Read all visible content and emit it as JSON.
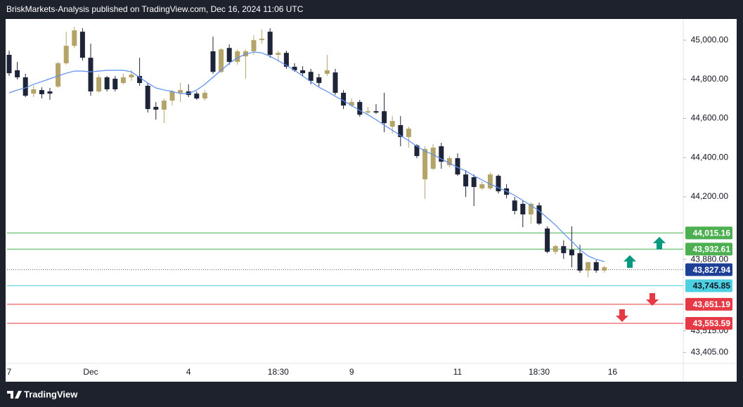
{
  "header": {
    "text": "BriskMarkets-Analysis published on TradingView.com, Dec 16, 2024 11:06 UTC"
  },
  "footer": {
    "brand": "TradingView"
  },
  "chart_data": {
    "type": "candlestick",
    "categories": [
      "7",
      null,
      null,
      null,
      null,
      null,
      null,
      null,
      null,
      null,
      "Dec",
      null,
      null,
      null,
      null,
      null,
      null,
      null,
      null,
      null,
      null,
      null,
      "4",
      null,
      null,
      null,
      null,
      null,
      null,
      null,
      null,
      null,
      null,
      "18:30",
      null,
      null,
      null,
      null,
      null,
      null,
      null,
      null,
      "9",
      null,
      null,
      null,
      null,
      null,
      null,
      null,
      null,
      null,
      null,
      null,
      null,
      "11",
      null,
      null,
      null,
      null,
      null,
      null,
      null,
      null,
      null,
      "18:30",
      null,
      null,
      null,
      null,
      null,
      null,
      null,
      null,
      "16"
    ],
    "open": [
      44925,
      44846,
      44810,
      44727,
      44745,
      44738,
      44763,
      44882,
      44971,
      45043,
      44910,
      44738,
      44810,
      44803,
      44781,
      44810,
      44817,
      44767,
      44659,
      44645,
      44691,
      44731,
      44738,
      44727,
      44702,
      44943,
      44838,
      44960,
      44889,
      44917,
      44943,
      45000,
      45043,
      44925,
      44935,
      44864,
      44846,
      44838,
      44810,
      44828,
      44835,
      44731,
      44666,
      44684,
      44630,
      44637,
      44637,
      44558,
      44566,
      44505,
      44462,
      44289,
      44343,
      44458,
      44361,
      44397,
      44314,
      44300,
      44243,
      44243,
      44307,
      44243,
      44181,
      44164,
      44110,
      44156,
      44038,
      43919,
      43948,
      43930,
      43912,
      43823,
      43866,
      43823,
      null
    ],
    "high": [
      44946,
      44889,
      44828,
      44767,
      44759,
      44756,
      44889,
      45043,
      45068,
      45061,
      44982,
      44824,
      44817,
      44817,
      44828,
      44846,
      44910,
      44781,
      44684,
      44702,
      44745,
      44781,
      44774,
      44738,
      44745,
      45018,
      44960,
      44978,
      44953,
      44953,
      45025,
      45054,
      45061,
      44946,
      44946,
      44882,
      44867,
      44853,
      44828,
      44925,
      44853,
      44745,
      44702,
      44695,
      44659,
      44673,
      44731,
      44612,
      44612,
      44558,
      44469,
      44458,
      44469,
      44476,
      44408,
      44422,
      44336,
      44314,
      44278,
      44325,
      44314,
      44264,
      44199,
      44181,
      44171,
      44171,
      44049,
      43955,
      43977,
      44049,
      43955,
      43869,
      43876,
      43848,
      null
    ],
    "low": [
      44817,
      44799,
      44709,
      44709,
      44702,
      44695,
      44756,
      44874,
      44960,
      44896,
      44716,
      44731,
      44738,
      44738,
      44774,
      44792,
      44767,
      44630,
      44594,
      44576,
      44666,
      44684,
      44709,
      44695,
      44691,
      44828,
      44831,
      44874,
      44874,
      44803,
      44925,
      44982,
      44910,
      44889,
      44853,
      44838,
      44817,
      44774,
      44763,
      44817,
      44720,
      44648,
      44659,
      44609,
      44623,
      44623,
      44530,
      44523,
      44458,
      44451,
      44397,
      44189,
      44336,
      44343,
      44350,
      44307,
      44199,
      44153,
      44235,
      44235,
      44217,
      44192,
      44110,
      44045,
      44063,
      44056,
      43912,
      43905,
      43883,
      43840,
      43812,
      43790,
      43812,
      43812,
      null
    ],
    "close": [
      44831,
      44810,
      44716,
      44749,
      44724,
      44727,
      44882,
      44971,
      45050,
      44910,
      44738,
      44810,
      44749,
      44749,
      44810,
      44824,
      44781,
      44648,
      44645,
      44691,
      44738,
      44745,
      44720,
      44702,
      44731,
      44838,
      44953,
      44889,
      44943,
      44943,
      45000,
      45007,
      44925,
      44935,
      44864,
      44846,
      44831,
      44792,
      44781,
      44846,
      44731,
      44666,
      44684,
      44619,
      44637,
      44630,
      44576,
      44587,
      44505,
      44548,
      44408,
      44444,
      44451,
      44379,
      44397,
      44314,
      44253,
      44250,
      44264,
      44314,
      44228,
      44210,
      44128,
      44110,
      44164,
      44063,
      43919,
      43948,
      43912,
      43901,
      43823,
      43866,
      43823,
      43840,
      null
    ],
    "up_color": "#b5a46a",
    "down_color": "#1f2538",
    "ma": {
      "color": "#5b8def",
      "values": [
        44731,
        44745,
        44756,
        44774,
        44788,
        44803,
        44817,
        44831,
        44842,
        44842,
        44838,
        44842,
        44846,
        44846,
        44846,
        44838,
        44810,
        44781,
        44756,
        44745,
        44738,
        44727,
        44727,
        44745,
        44774,
        44810,
        44846,
        44882,
        44910,
        44928,
        44939,
        44935,
        44917,
        44896,
        44871,
        44846,
        44817,
        44788,
        44759,
        44738,
        44713,
        44691,
        44666,
        44641,
        44619,
        44594,
        44566,
        44540,
        44512,
        44487,
        44458,
        44433,
        44415,
        44393,
        44372,
        44350,
        44332,
        44307,
        44286,
        44264,
        44246,
        44228,
        44207,
        44181,
        44156,
        44128,
        44092,
        44056,
        44013,
        43973,
        43930,
        43898,
        43880,
        43869,
        null
      ]
    },
    "ylim": [
      43349,
      45108
    ],
    "yticks": [
      {
        "value": 45000,
        "label": "45,000.00"
      },
      {
        "value": 44800,
        "label": "44,800.00"
      },
      {
        "value": 44600,
        "label": "44,600.00"
      },
      {
        "value": 44400,
        "label": "44,400.00"
      },
      {
        "value": 44200,
        "label": "44,200.00"
      },
      {
        "value": 43880,
        "label": "43,880.00"
      },
      {
        "value": 43515,
        "label": "43,515.00"
      },
      {
        "value": 43405,
        "label": "43,405.00"
      }
    ],
    "levels": {
      "values": [
        44015.16,
        43932.61,
        43827.94,
        43745.85,
        43651.19,
        43553.59
      ],
      "value_labels": [
        "44,015.16",
        "43,932.61",
        "43,827.94",
        "43,745.85",
        "43,651.19",
        "43,553.59"
      ],
      "colors": [
        "#4caf50",
        "#4caf50",
        "#1e3f96",
        "#4dd0e1",
        "#e53945",
        "#e53945"
      ],
      "label_colors": [
        "#ffffff",
        "#ffffff",
        "#ffffff",
        "#131722",
        "#ffffff",
        "#ffffff"
      ],
      "dotted": [
        false,
        false,
        true,
        false,
        false,
        false
      ]
    }
  }
}
